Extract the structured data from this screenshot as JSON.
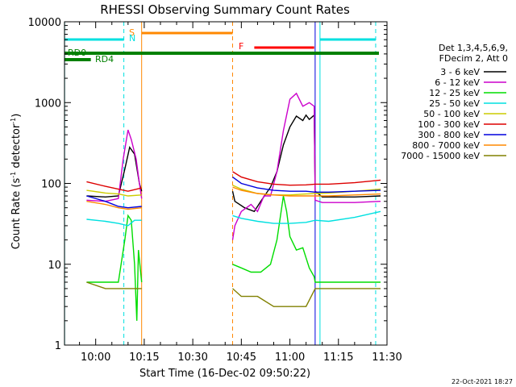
{
  "chart_data": {
    "type": "line",
    "title": "RHESSI Observing Summary Count Rates",
    "xlabel": "Start Time (16-Dec-02 09:50:22)",
    "ylabel_main": "Count Rate (s",
    "ylabel_sup1": "-1",
    "ylabel_mid": " detector",
    "ylabel_sup2": "-1",
    "ylabel_end": ")",
    "yscale": "log",
    "ylim": [
      1,
      10000
    ],
    "xlim": [
      "09:50:22",
      "11:30:00"
    ],
    "y_ticks": [
      "1",
      "10",
      "100",
      "1000",
      "10000"
    ],
    "x_ticks": [
      "10:00",
      "10:15",
      "10:30",
      "10:45",
      "11:00",
      "11:15",
      "11:30"
    ],
    "x_tick_minutes": [
      600,
      615,
      630,
      645,
      660,
      675,
      690
    ],
    "legend_header": [
      "Det 1,3,4,5,6,9,",
      "FDecim 2, Att 0"
    ],
    "footer": "22-Oct-2021 18:27",
    "series": [
      {
        "name": "3 - 6 keV",
        "color": "#000000",
        "points": [
          [
            597.2,
            70
          ],
          [
            603,
            68
          ],
          [
            607,
            70
          ],
          [
            609,
            150
          ],
          [
            610.5,
            280
          ],
          [
            612,
            230
          ],
          [
            613.5,
            100
          ],
          [
            614.2,
            80
          ],
          [
            642.3,
            80
          ],
          [
            643,
            60
          ],
          [
            646,
            50
          ],
          [
            649,
            45
          ],
          [
            651,
            60
          ],
          [
            654,
            90
          ],
          [
            656,
            140
          ],
          [
            658,
            300
          ],
          [
            660,
            500
          ],
          [
            662,
            680
          ],
          [
            664,
            600
          ],
          [
            665,
            700
          ],
          [
            666,
            620
          ],
          [
            667.5,
            700
          ],
          [
            667.8,
            80
          ],
          [
            670,
            68
          ],
          [
            680,
            68
          ],
          [
            688,
            70
          ]
        ]
      },
      {
        "name": "6 - 12 keV",
        "color": "#cc00cc",
        "points": [
          [
            597.2,
            62
          ],
          [
            603,
            60
          ],
          [
            607,
            65
          ],
          [
            608.5,
            200
          ],
          [
            610,
            460
          ],
          [
            611,
            350
          ],
          [
            612.5,
            200
          ],
          [
            613.5,
            100
          ],
          [
            614.2,
            65
          ],
          [
            642.3,
            20
          ],
          [
            643,
            30
          ],
          [
            645,
            45
          ],
          [
            648,
            55
          ],
          [
            650,
            45
          ],
          [
            652,
            70
          ],
          [
            654,
            70
          ],
          [
            656,
            140
          ],
          [
            658,
            450
          ],
          [
            660,
            1100
          ],
          [
            662,
            1300
          ],
          [
            664,
            900
          ],
          [
            666,
            1000
          ],
          [
            667.5,
            900
          ],
          [
            667.8,
            62
          ],
          [
            670,
            58
          ],
          [
            680,
            58
          ],
          [
            688,
            60
          ]
        ]
      },
      {
        "name": "12 - 25 keV",
        "color": "#00dd00",
        "points": [
          [
            597.2,
            6
          ],
          [
            603,
            6
          ],
          [
            607,
            6
          ],
          [
            609,
            20
          ],
          [
            610,
            40
          ],
          [
            611,
            35
          ],
          [
            612,
            10
          ],
          [
            612.7,
            2
          ],
          [
            613.2,
            15
          ],
          [
            614.2,
            6
          ],
          [
            642.3,
            10
          ],
          [
            645,
            9
          ],
          [
            648,
            8
          ],
          [
            651,
            8
          ],
          [
            654,
            10
          ],
          [
            656,
            20
          ],
          [
            658,
            70
          ],
          [
            659,
            45
          ],
          [
            660,
            22
          ],
          [
            662,
            15
          ],
          [
            664,
            16
          ],
          [
            666,
            9
          ],
          [
            667.5,
            7
          ],
          [
            667.8,
            6
          ],
          [
            670,
            6
          ],
          [
            680,
            6
          ],
          [
            688,
            6
          ]
        ]
      },
      {
        "name": "25 - 50 keV",
        "color": "#00e0e0",
        "points": [
          [
            597.2,
            36
          ],
          [
            603,
            34
          ],
          [
            607,
            32
          ],
          [
            610,
            30
          ],
          [
            612,
            35
          ],
          [
            614.2,
            35
          ],
          [
            642.3,
            40
          ],
          [
            645,
            37
          ],
          [
            650,
            34
          ],
          [
            655,
            32
          ],
          [
            660,
            32
          ],
          [
            665,
            33
          ],
          [
            667.8,
            35
          ],
          [
            672,
            34
          ],
          [
            680,
            38
          ],
          [
            688,
            45
          ]
        ]
      },
      {
        "name": "50 - 100 keV",
        "color": "#cccc00",
        "points": [
          [
            597.2,
            82
          ],
          [
            603,
            76
          ],
          [
            607,
            74
          ],
          [
            610,
            70
          ],
          [
            614.2,
            72
          ],
          [
            642.3,
            95
          ],
          [
            645,
            85
          ],
          [
            650,
            75
          ],
          [
            655,
            72
          ],
          [
            660,
            72
          ],
          [
            665,
            74
          ],
          [
            667.8,
            75
          ],
          [
            672,
            76
          ],
          [
            680,
            80
          ],
          [
            688,
            85
          ]
        ]
      },
      {
        "name": "100 - 300 keV",
        "color": "#dd0000",
        "points": [
          [
            597.2,
            105
          ],
          [
            603,
            92
          ],
          [
            607,
            85
          ],
          [
            610,
            80
          ],
          [
            614.2,
            88
          ],
          [
            642.3,
            140
          ],
          [
            645,
            120
          ],
          [
            650,
            105
          ],
          [
            655,
            98
          ],
          [
            660,
            95
          ],
          [
            665,
            96
          ],
          [
            667.8,
            98
          ],
          [
            672,
            98
          ],
          [
            680,
            102
          ],
          [
            688,
            110
          ]
        ]
      },
      {
        "name": "300 - 800 keV",
        "color": "#0000dd",
        "points": [
          [
            597.2,
            70
          ],
          [
            603,
            60
          ],
          [
            607,
            52
          ],
          [
            610,
            50
          ],
          [
            614.2,
            52
          ],
          [
            642.3,
            120
          ],
          [
            645,
            100
          ],
          [
            650,
            88
          ],
          [
            655,
            82
          ],
          [
            660,
            80
          ],
          [
            665,
            80
          ],
          [
            667.8,
            78
          ],
          [
            672,
            78
          ],
          [
            680,
            80
          ],
          [
            688,
            82
          ]
        ]
      },
      {
        "name": "800 - 7000 keV",
        "color": "#ff8800",
        "points": [
          [
            597.2,
            60
          ],
          [
            603,
            55
          ],
          [
            607,
            50
          ],
          [
            610,
            48
          ],
          [
            614.2,
            50
          ],
          [
            642.3,
            90
          ],
          [
            645,
            82
          ],
          [
            650,
            75
          ],
          [
            655,
            72
          ],
          [
            660,
            70
          ],
          [
            665,
            70
          ],
          [
            667.8,
            70
          ],
          [
            672,
            70
          ],
          [
            680,
            72
          ],
          [
            688,
            74
          ]
        ]
      },
      {
        "name": "7000 - 15000 keV",
        "color": "#808000",
        "points": [
          [
            597.2,
            6
          ],
          [
            603,
            5
          ],
          [
            607,
            5
          ],
          [
            610,
            5
          ],
          [
            614.2,
            5
          ],
          [
            642.3,
            5
          ],
          [
            645,
            4
          ],
          [
            650,
            4
          ],
          [
            655,
            3
          ],
          [
            660,
            3
          ],
          [
            665,
            3
          ],
          [
            667.8,
            5
          ],
          [
            672,
            5
          ],
          [
            680,
            5
          ],
          [
            688,
            5
          ]
        ]
      }
    ],
    "bars": [
      {
        "label": "S",
        "color": "#ff8800",
        "start": 614.2,
        "end": 642.3
      },
      {
        "label": "N",
        "color": "#00e0e0",
        "start": 590.4,
        "end": 608.7
      },
      {
        "label": "",
        "color": "#00e0e0",
        "start": 669.3,
        "end": 686.5
      },
      {
        "label": "F",
        "color": "#ff0000",
        "start": 649.0,
        "end": 667.5
      },
      {
        "label": "RD0",
        "color": "#008000",
        "start": 590.4,
        "end": 687.5
      },
      {
        "label": "RD4",
        "color": "#008000",
        "start": 590.4,
        "end": 598.5
      }
    ],
    "vlines": [
      {
        "t": 590.4,
        "color": "#00e0e0",
        "style": "solid"
      },
      {
        "t": 608.7,
        "color": "#00e0e0",
        "style": "dash"
      },
      {
        "t": 614.2,
        "color": "#ff8800",
        "style": "solid"
      },
      {
        "t": 642.3,
        "color": "#ff8800",
        "style": "dash"
      },
      {
        "t": 667.8,
        "color": "#0000dd",
        "style": "solid"
      },
      {
        "t": 669.3,
        "color": "#00e0e0",
        "style": "solid"
      },
      {
        "t": 686.5,
        "color": "#00e0e0",
        "style": "dash"
      }
    ]
  }
}
